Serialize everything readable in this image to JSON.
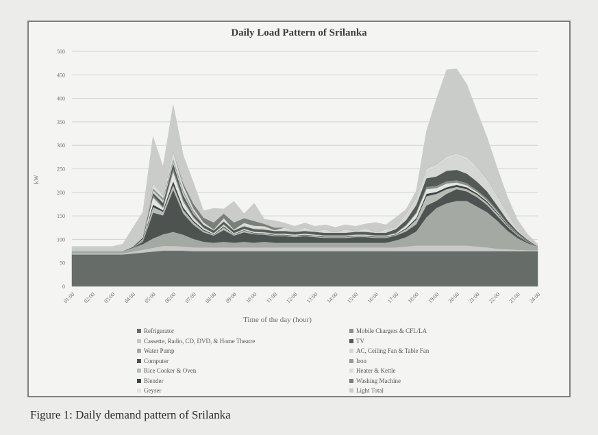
{
  "caption": "Figure 1: Daily demand pattern of Srilanka",
  "chart_data": {
    "type": "area",
    "stacked": true,
    "title": "Daily Load Pattern of Srilanka",
    "xlabel": "Time of the day (hour)",
    "ylabel": "kW",
    "ylim": [
      0,
      500
    ],
    "yticks": [
      "0",
      "50",
      "100",
      "150",
      "200",
      "250",
      "300",
      "350",
      "400",
      "450",
      "500"
    ],
    "x": [
      "01:00",
      "01:30",
      "02:00",
      "02:30",
      "03:00",
      "03:30",
      "04:00",
      "04:30",
      "05:00",
      "05:30",
      "06:00",
      "06:30",
      "07:00",
      "07:30",
      "08:00",
      "08:30",
      "09:00",
      "09:30",
      "10:00",
      "10:30",
      "11:00",
      "11:30",
      "12:00",
      "12:30",
      "13:00",
      "13:30",
      "14:00",
      "14:30",
      "15:00",
      "15:30",
      "16:00",
      "16:30",
      "17:00",
      "17:30",
      "18:00",
      "18:30",
      "19:00",
      "19:30",
      "20:00",
      "20:30",
      "21:00",
      "21:30",
      "22:00",
      "22:30",
      "23:00",
      "23:30",
      "24:00"
    ],
    "xtick_labels": [
      "01:00",
      "02:00",
      "03:00",
      "04:00",
      "05:00",
      "06:00",
      "07:00",
      "08:00",
      "09:00",
      "10:00",
      "11:00",
      "12:00",
      "13:00",
      "14:00",
      "15:00",
      "16:00",
      "17:00",
      "18:00",
      "19:00",
      "20:00",
      "21:00",
      "22:00",
      "23:00",
      "24:00"
    ],
    "grid": true,
    "legend_position": "bottom, two columns",
    "series": [
      {
        "name": "Refrigerator",
        "color": "#666c68",
        "values": [
          68,
          68,
          68,
          68,
          68,
          68,
          70,
          72,
          74,
          76,
          76,
          76,
          75,
          75,
          75,
          75,
          75,
          75,
          75,
          75,
          75,
          75,
          75,
          75,
          75,
          75,
          75,
          75,
          75,
          75,
          75,
          75,
          75,
          75,
          75,
          75,
          75,
          75,
          75,
          75,
          75,
          75,
          75,
          75,
          75,
          75,
          75
        ]
      },
      {
        "name": "Cassette, Radio, CD, DVD, & Home Theatre",
        "color": "#c6c9c5",
        "values": [
          2,
          2,
          2,
          2,
          2,
          2,
          4,
          6,
          8,
          10,
          10,
          9,
          8,
          8,
          8,
          8,
          8,
          8,
          8,
          8,
          8,
          8,
          8,
          8,
          8,
          8,
          8,
          8,
          8,
          8,
          8,
          8,
          8,
          10,
          12,
          12,
          12,
          12,
          12,
          12,
          10,
          8,
          5,
          4,
          3,
          2,
          2
        ]
      },
      {
        "name": "Water Pump",
        "color": "#a5a9a4",
        "values": [
          5,
          5,
          5,
          5,
          5,
          5,
          8,
          12,
          20,
          25,
          30,
          25,
          18,
          12,
          10,
          12,
          10,
          12,
          10,
          12,
          10,
          10,
          10,
          10,
          10,
          10,
          10,
          10,
          10,
          10,
          10,
          10,
          15,
          20,
          30,
          60,
          80,
          90,
          95,
          95,
          85,
          75,
          60,
          40,
          25,
          15,
          8
        ]
      },
      {
        "name": "Computer",
        "color": "#4d5350",
        "values": [
          0,
          0,
          0,
          0,
          0,
          0,
          0,
          5,
          55,
          40,
          90,
          45,
          30,
          20,
          15,
          25,
          15,
          20,
          18,
          15,
          14,
          14,
          12,
          14,
          12,
          10,
          10,
          10,
          12,
          12,
          10,
          10,
          10,
          12,
          15,
          25,
          15,
          20,
          25,
          20,
          20,
          15,
          10,
          8,
          5,
          2,
          0
        ]
      },
      {
        "name": "Rice Cooker & Oven",
        "color": "#b8bcb7",
        "values": [
          0,
          0,
          0,
          0,
          0,
          0,
          0,
          2,
          12,
          8,
          10,
          8,
          6,
          4,
          2,
          6,
          2,
          4,
          2,
          2,
          2,
          2,
          2,
          2,
          2,
          2,
          2,
          2,
          2,
          2,
          2,
          2,
          2,
          5,
          10,
          20,
          15,
          10,
          5,
          5,
          5,
          5,
          5,
          3,
          2,
          1,
          0
        ]
      },
      {
        "name": "Blender",
        "color": "#3e4440",
        "values": [
          0,
          0,
          0,
          0,
          0,
          0,
          0,
          1,
          5,
          3,
          8,
          5,
          3,
          2,
          1,
          2,
          1,
          1,
          1,
          1,
          1,
          1,
          1,
          1,
          1,
          1,
          1,
          1,
          1,
          1,
          1,
          1,
          1,
          2,
          3,
          5,
          4,
          4,
          4,
          4,
          3,
          3,
          2,
          2,
          1,
          1,
          0
        ]
      },
      {
        "name": "Geyser",
        "color": "#e3e5e2",
        "values": [
          0,
          0,
          0,
          0,
          0,
          0,
          0,
          2,
          15,
          5,
          20,
          12,
          6,
          3,
          2,
          3,
          2,
          2,
          2,
          2,
          2,
          2,
          2,
          2,
          2,
          2,
          2,
          2,
          2,
          2,
          2,
          2,
          2,
          5,
          10,
          10,
          8,
          8,
          5,
          4,
          3,
          2,
          2,
          1,
          1,
          0,
          0
        ]
      },
      {
        "name": "Mobile Chargers & CFL/LA",
        "color": "#8b908b",
        "values": [
          0,
          0,
          0,
          0,
          0,
          0,
          0,
          1,
          5,
          3,
          8,
          6,
          3,
          2,
          1,
          2,
          1,
          1,
          1,
          1,
          1,
          1,
          1,
          1,
          1,
          1,
          1,
          1,
          1,
          1,
          1,
          1,
          1,
          2,
          3,
          5,
          5,
          5,
          5,
          5,
          4,
          4,
          3,
          2,
          1,
          1,
          0
        ]
      },
      {
        "name": "TV",
        "color": "#535954",
        "values": [
          0,
          0,
          0,
          0,
          0,
          0,
          2,
          3,
          5,
          8,
          10,
          8,
          5,
          5,
          5,
          5,
          5,
          5,
          5,
          5,
          5,
          5,
          5,
          5,
          5,
          5,
          5,
          5,
          5,
          5,
          5,
          5,
          8,
          10,
          15,
          18,
          20,
          22,
          22,
          20,
          18,
          15,
          10,
          6,
          4,
          2,
          0
        ]
      },
      {
        "name": "AC, Ceiling Fan & Table Fan",
        "color": "#d5d8d4",
        "values": [
          0,
          0,
          0,
          0,
          0,
          0,
          0,
          2,
          5,
          5,
          5,
          5,
          2,
          0,
          2,
          2,
          2,
          2,
          2,
          2,
          2,
          2,
          2,
          2,
          2,
          2,
          2,
          2,
          2,
          2,
          2,
          2,
          5,
          8,
          10,
          15,
          20,
          25,
          30,
          30,
          25,
          20,
          15,
          10,
          5,
          2,
          0
        ]
      },
      {
        "name": "Iron",
        "color": "#969a96",
        "values": [
          0,
          0,
          0,
          0,
          0,
          0,
          0,
          0,
          5,
          5,
          5,
          5,
          5,
          0,
          0,
          0,
          0,
          0,
          0,
          0,
          0,
          0,
          0,
          0,
          0,
          0,
          0,
          0,
          0,
          0,
          0,
          0,
          0,
          0,
          0,
          0,
          0,
          0,
          0,
          0,
          0,
          0,
          0,
          0,
          0,
          0,
          0
        ]
      },
      {
        "name": "Heater & Kettle",
        "color": "#dcdedb",
        "values": [
          0,
          0,
          0,
          0,
          0,
          0,
          0,
          0,
          10,
          5,
          15,
          10,
          5,
          5,
          0,
          5,
          0,
          5,
          5,
          5,
          0,
          5,
          0,
          5,
          0,
          5,
          0,
          5,
          0,
          5,
          0,
          5,
          0,
          5,
          5,
          5,
          5,
          5,
          5,
          5,
          5,
          5,
          5,
          5,
          0,
          0,
          0
        ]
      },
      {
        "name": "Washing Machine",
        "color": "#7a7f7a",
        "values": [
          0,
          0,
          0,
          0,
          0,
          0,
          0,
          0,
          0,
          0,
          0,
          5,
          10,
          10,
          15,
          10,
          15,
          10,
          10,
          5,
          5,
          0,
          0,
          0,
          0,
          0,
          0,
          0,
          0,
          0,
          0,
          0,
          0,
          0,
          0,
          0,
          0,
          0,
          0,
          0,
          0,
          0,
          0,
          0,
          0,
          0,
          0
        ]
      },
      {
        "name": "Light Total",
        "color": "#c9ccc8",
        "values": [
          10,
          10,
          10,
          10,
          10,
          15,
          40,
          52,
          100,
          62,
          100,
          60,
          45,
          15,
          30,
          10,
          45,
          10,
          38,
          10,
          15,
          10,
          10,
          10,
          10,
          10,
          10,
          10,
          10,
          10,
          20,
          10,
          20,
          10,
          15,
          80,
          140,
          185,
          180,
          155,
          120,
          90,
          60,
          35,
          20,
          10,
          5
        ]
      }
    ]
  }
}
